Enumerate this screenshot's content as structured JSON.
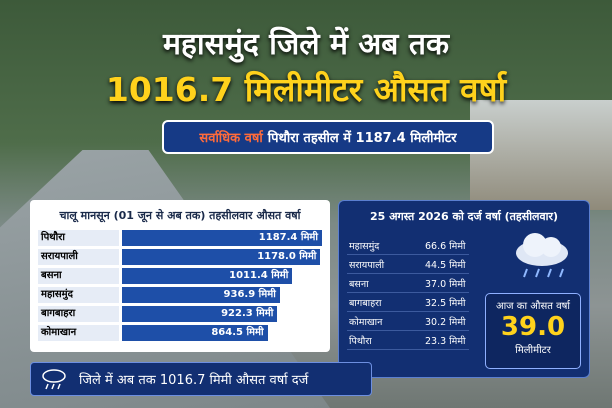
{
  "header": {
    "title_line1": "महासमुंद जिले में अब तक",
    "title_line2": "1016.7 मिलीमीटर औसत वर्षा",
    "subtitle_highlight": "सर्वाधिक वर्षा",
    "subtitle_rest": "पिथौरा तहसील में 1187.4 मिलीमीटर"
  },
  "left_panel": {
    "title": "चालू मानसून (01 जून से अब तक) तहसीलवार औसत वर्षा",
    "rows": [
      {
        "name": "पिथौरा",
        "value": 1187.4,
        "label": "1187.4 मिमी"
      },
      {
        "name": "सरायपाली",
        "value": 1178.0,
        "label": "1178.0 मिमी"
      },
      {
        "name": "बसना",
        "value": 1011.4,
        "label": "1011.4 मिमी"
      },
      {
        "name": "महासमुंद",
        "value": 936.9,
        "label": "936.9 मिमी"
      },
      {
        "name": "बागबाहरा",
        "value": 922.3,
        "label": "922.3 मिमी"
      },
      {
        "name": "कोमाखान",
        "value": 864.5,
        "label": "864.5 मिमी"
      }
    ]
  },
  "right_panel": {
    "title": "25 अगस्त 2026 को दर्ज वर्षा (तहसीलवार)",
    "rows": [
      {
        "name": "महासमुंद",
        "amount": "66.6 मिमी"
      },
      {
        "name": "सरायपाली",
        "amount": "44.5 मिमी"
      },
      {
        "name": "बसना",
        "amount": "37.0 मिमी"
      },
      {
        "name": "बागबाहरा",
        "amount": "32.5 मिमी"
      },
      {
        "name": "कोमाखान",
        "amount": "30.2 मिमी"
      },
      {
        "name": "पिथौरा",
        "amount": "23.3 मिमी"
      }
    ],
    "average": {
      "caption": "आज का औसत वर्षा",
      "value": "39.0",
      "unit": "मिलीमीटर"
    }
  },
  "footer": {
    "text": "जिले में अब तक 1016.7 मिमी औसत वर्षा दर्ज"
  }
}
